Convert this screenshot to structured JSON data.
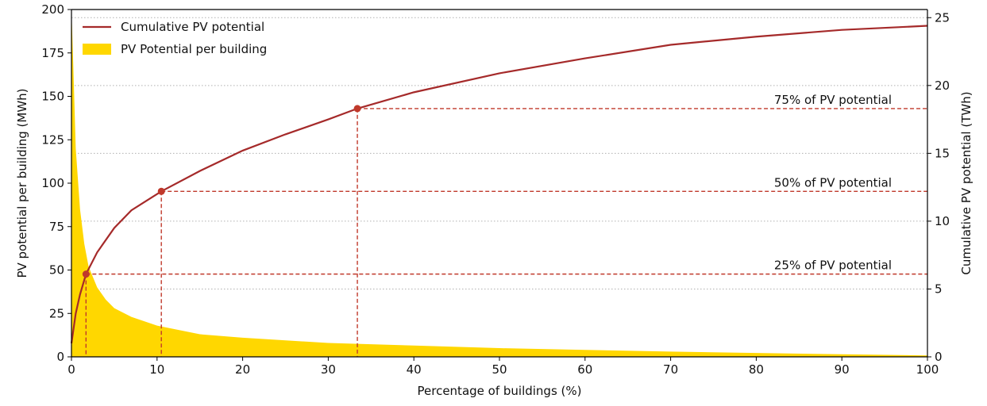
{
  "chart_data": {
    "type": "line",
    "xlabel": "Percentage of buildings (%)",
    "ylabel_left": "PV potential per building (MWh)",
    "ylabel_right": "Cumulative PV potential (TWh)",
    "xlim": [
      0,
      100
    ],
    "ylim_left": [
      0,
      200
    ],
    "ylim_right": [
      0,
      25.6
    ],
    "x_ticks": [
      0,
      10,
      20,
      30,
      40,
      50,
      60,
      70,
      80,
      90,
      100
    ],
    "y_left_ticks": [
      0,
      25,
      50,
      75,
      100,
      125,
      150,
      175,
      200
    ],
    "y_right_ticks": [
      0,
      5,
      10,
      15,
      20,
      25
    ],
    "grid": "horizontal-dotted",
    "legend_position": "top-left",
    "legend": [
      {
        "label": "Cumulative PV potential",
        "style": "line",
        "color": "#a52a2a"
      },
      {
        "label": "PV Potential per building",
        "style": "patch",
        "color": "#ffd700"
      }
    ],
    "series": [
      {
        "name": "Cumulative PV potential",
        "axis": "right",
        "kind": "line",
        "color": "#a52a2a",
        "x": [
          0,
          0.5,
          1,
          1.7,
          3,
          5,
          7,
          10.5,
          15,
          20,
          25,
          30,
          33.4,
          40,
          50,
          60,
          70,
          80,
          90,
          100
        ],
        "y": [
          1.0,
          3.2,
          4.6,
          6.1,
          7.7,
          9.5,
          10.8,
          12.2,
          13.7,
          15.2,
          16.4,
          17.5,
          18.3,
          19.5,
          20.9,
          22.0,
          23.0,
          23.6,
          24.1,
          24.4
        ]
      },
      {
        "name": "PV Potential per building",
        "axis": "left",
        "kind": "area",
        "color": "#ffd700",
        "x": [
          0,
          0.2,
          0.5,
          1,
          1.5,
          2,
          3,
          4,
          5,
          7,
          10,
          15,
          20,
          30,
          40,
          50,
          60,
          70,
          80,
          90,
          100
        ],
        "y": [
          200,
          170,
          120,
          85,
          65,
          52,
          40,
          33,
          28,
          23,
          18,
          13,
          11,
          8,
          6.5,
          5,
          4,
          3,
          2.2,
          1.5,
          0.8
        ]
      }
    ],
    "markers": [
      {
        "x": 1.7,
        "y": 6.1,
        "label": "25% of PV potential"
      },
      {
        "x": 10.5,
        "y": 12.2,
        "label": "50% of PV potential"
      },
      {
        "x": 33.4,
        "y": 18.3,
        "label": "75% of PV potential"
      }
    ],
    "reference_color": "#c0392b"
  }
}
